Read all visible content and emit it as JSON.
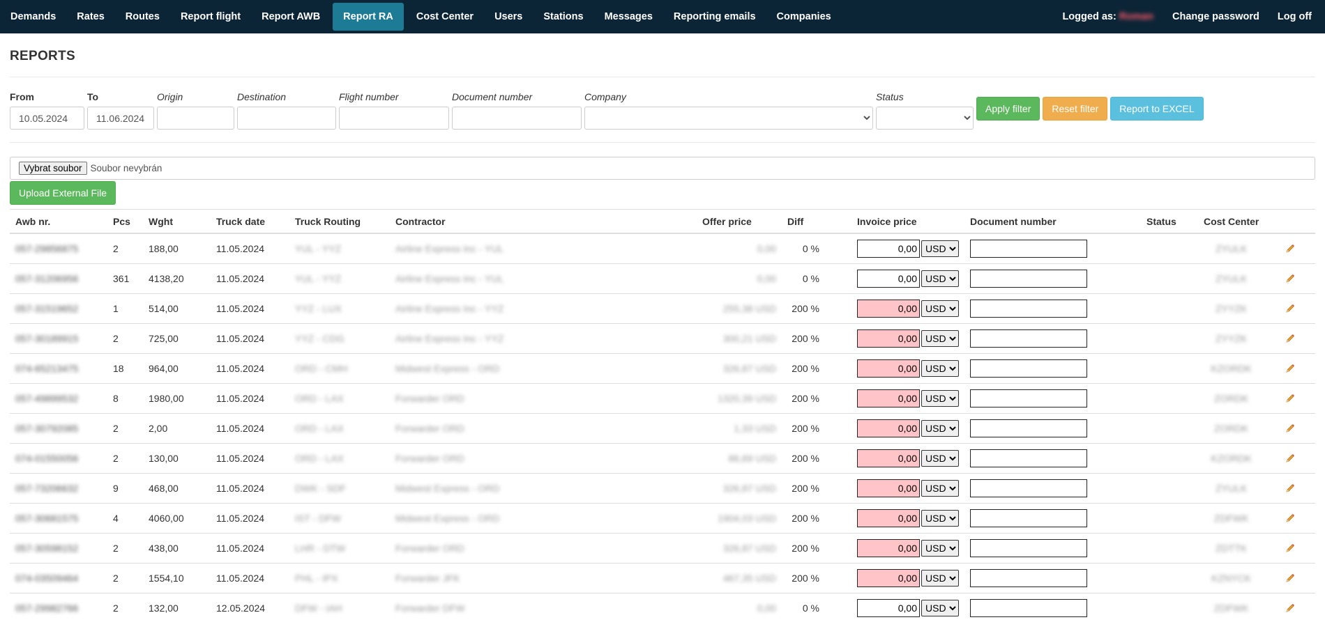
{
  "nav": {
    "items": [
      {
        "label": "Demands",
        "active": false
      },
      {
        "label": "Rates",
        "active": false
      },
      {
        "label": "Routes",
        "active": false
      },
      {
        "label": "Report flight",
        "active": false
      },
      {
        "label": "Report AWB",
        "active": false
      },
      {
        "label": "Report RA",
        "active": true
      },
      {
        "label": "Cost Center",
        "active": false
      },
      {
        "label": "Users",
        "active": false
      },
      {
        "label": "Stations",
        "active": false
      },
      {
        "label": "Messages",
        "active": false
      },
      {
        "label": "Reporting emails",
        "active": false
      },
      {
        "label": "Companies",
        "active": false
      }
    ],
    "logged_as_label": "Logged as:",
    "logged_user": "Roman",
    "change_password": "Change password",
    "log_off": "Log off"
  },
  "page": {
    "title": "REPORTS"
  },
  "filter": {
    "from_label": "From",
    "from_value": "10.05.2024",
    "to_label": "To",
    "to_value": "11.06.2024",
    "origin_label": "Origin",
    "destination_label": "Destination",
    "flight_number_label": "Flight number",
    "document_number_label": "Document number",
    "company_label": "Company",
    "status_label": "Status",
    "apply_label": "Apply filter",
    "reset_label": "Reset filter",
    "excel_label": "Report to EXCEL"
  },
  "upload": {
    "choose_label": "Vybrat soubor",
    "no_file_label": "Soubor nevybrán",
    "upload_label": "Upload External File"
  },
  "table": {
    "headers": [
      "Awb nr.",
      "Pcs",
      "Wght",
      "Truck date",
      "Truck Routing",
      "Contractor",
      "Offer price",
      "Diff",
      "Invoice price",
      "Document number",
      "Status",
      "Cost Center"
    ],
    "rows": [
      {
        "awb": "057-29856875",
        "pcs": "2",
        "wght": "188,00",
        "date": "11.05.2024",
        "routing": "YUL - YYZ",
        "contractor": "Airline Express Inc - YUL",
        "offer": "0,00",
        "diff": "0 %",
        "invoice": "0,00",
        "currency": "USD",
        "flag": false,
        "cost_center": "ZYULK"
      },
      {
        "awb": "057-31206956",
        "pcs": "361",
        "wght": "4138,20",
        "date": "11.05.2024",
        "routing": "YUL - YYZ",
        "contractor": "Airline Express Inc - YUL",
        "offer": "0,00",
        "diff": "0 %",
        "invoice": "0,00",
        "currency": "USD",
        "flag": false,
        "cost_center": "ZYULK"
      },
      {
        "awb": "057-31519652",
        "pcs": "1",
        "wght": "514,00",
        "date": "11.05.2024",
        "routing": "YYZ - LUX",
        "contractor": "Airline Express Inc - YYZ",
        "offer": "255,38 USD",
        "diff": "200 %",
        "invoice": "0,00",
        "currency": "USD",
        "flag": true,
        "cost_center": "ZYYZK"
      },
      {
        "awb": "057-30189915",
        "pcs": "2",
        "wght": "725,00",
        "date": "11.05.2024",
        "routing": "YYZ - CDG",
        "contractor": "Airline Express Inc - YYZ",
        "offer": "300,21 USD",
        "diff": "200 %",
        "invoice": "0,00",
        "currency": "USD",
        "flag": true,
        "cost_center": "ZYYZK"
      },
      {
        "awb": "074-65213475",
        "pcs": "18",
        "wght": "964,00",
        "date": "11.05.2024",
        "routing": "ORD - CMH",
        "contractor": "Midwest Express - ORD",
        "offer": "326,87 USD",
        "diff": "200 %",
        "invoice": "0,00",
        "currency": "USD",
        "flag": true,
        "cost_center": "KZORDK"
      },
      {
        "awb": "057-49899532",
        "pcs": "8",
        "wght": "1980,00",
        "date": "11.05.2024",
        "routing": "ORD - LAX",
        "contractor": "Forwarder ORD",
        "offer": "1320,39 USD",
        "diff": "200 %",
        "invoice": "0,00",
        "currency": "USD",
        "flag": true,
        "cost_center": "ZORDK"
      },
      {
        "awb": "057-30792085",
        "pcs": "2",
        "wght": "2,00",
        "date": "11.05.2024",
        "routing": "ORD - LAX",
        "contractor": "Forwarder ORD",
        "offer": "1,33 USD",
        "diff": "200 %",
        "invoice": "0,00",
        "currency": "USD",
        "flag": true,
        "cost_center": "ZORDK"
      },
      {
        "awb": "074-01550056",
        "pcs": "2",
        "wght": "130,00",
        "date": "11.05.2024",
        "routing": "ORD - LAX",
        "contractor": "Forwarder ORD",
        "offer": "86,69 USD",
        "diff": "200 %",
        "invoice": "0,00",
        "currency": "USD",
        "flag": true,
        "cost_center": "KZORDK"
      },
      {
        "awb": "057-73206632",
        "pcs": "9",
        "wght": "468,00",
        "date": "11.05.2024",
        "routing": "DWK - SDF",
        "contractor": "Midwest Express - ORD",
        "offer": "326,87 USD",
        "diff": "200 %",
        "invoice": "0,00",
        "currency": "USD",
        "flag": true,
        "cost_center": "ZYULK"
      },
      {
        "awb": "057-30681575",
        "pcs": "4",
        "wght": "4060,00",
        "date": "11.05.2024",
        "routing": "IST - DFW",
        "contractor": "Midwest Express - ORD",
        "offer": "1904,03 USD",
        "diff": "200 %",
        "invoice": "0,00",
        "currency": "USD",
        "flag": true,
        "cost_center": "ZDFWK"
      },
      {
        "awb": "057-30598152",
        "pcs": "2",
        "wght": "438,00",
        "date": "11.05.2024",
        "routing": "LHR - DTW",
        "contractor": "Forwarder ORD",
        "offer": "326,87 USD",
        "diff": "200 %",
        "invoice": "0,00",
        "currency": "USD",
        "flag": true,
        "cost_center": "ZDTTK"
      },
      {
        "awb": "074-03509464",
        "pcs": "2",
        "wght": "1554,10",
        "date": "11.05.2024",
        "routing": "PHL - IPX",
        "contractor": "Forwarder JFK",
        "offer": "467,35 USD",
        "diff": "200 %",
        "invoice": "0,00",
        "currency": "USD",
        "flag": true,
        "cost_center": "KZNYCK"
      },
      {
        "awb": "057-29982766",
        "pcs": "2",
        "wght": "132,00",
        "date": "12.05.2024",
        "routing": "DFW - IAH",
        "contractor": "Forwarder DFW",
        "offer": "0,00",
        "diff": "0 %",
        "invoice": "0,00",
        "currency": "USD",
        "flag": false,
        "cost_center": "ZDFWK"
      }
    ]
  },
  "colors": {
    "nav_bg": "#0c2536",
    "nav_active": "#1d7b96",
    "green": "#5cb85c",
    "orange": "#f0ad4e",
    "blue": "#5bc0de",
    "flag_pink": "#ffc4c8"
  },
  "icons": {
    "edit": "pencil-icon",
    "dropdown": "chevron-down-icon"
  }
}
